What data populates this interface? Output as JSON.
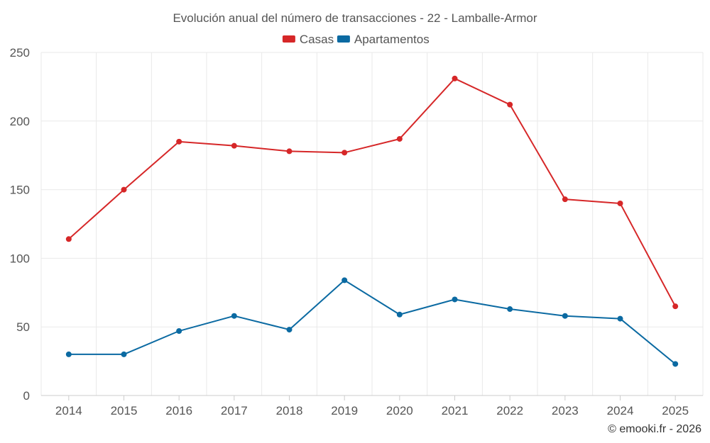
{
  "chart_data": {
    "type": "line",
    "title": "Evolución anual del número de transacciones - 22 - Lamballe-Armor",
    "categories": [
      "2014",
      "2015",
      "2016",
      "2017",
      "2018",
      "2019",
      "2020",
      "2021",
      "2022",
      "2023",
      "2024",
      "2025"
    ],
    "series": [
      {
        "name": "Casas",
        "color": "#d62728",
        "values": [
          114,
          150,
          185,
          182,
          178,
          177,
          187,
          231,
          212,
          143,
          140,
          65
        ]
      },
      {
        "name": "Apartamentos",
        "color": "#0b6aa2",
        "values": [
          30,
          30,
          47,
          58,
          48,
          84,
          59,
          70,
          63,
          58,
          56,
          23
        ]
      }
    ],
    "ylim": [
      0,
      250
    ],
    "yticks": [
      0,
      50,
      100,
      150,
      200,
      250
    ],
    "xlabel": "",
    "ylabel": "",
    "grid": true,
    "legend_position": "top-center"
  },
  "credit": "© emooki.fr - 2026"
}
